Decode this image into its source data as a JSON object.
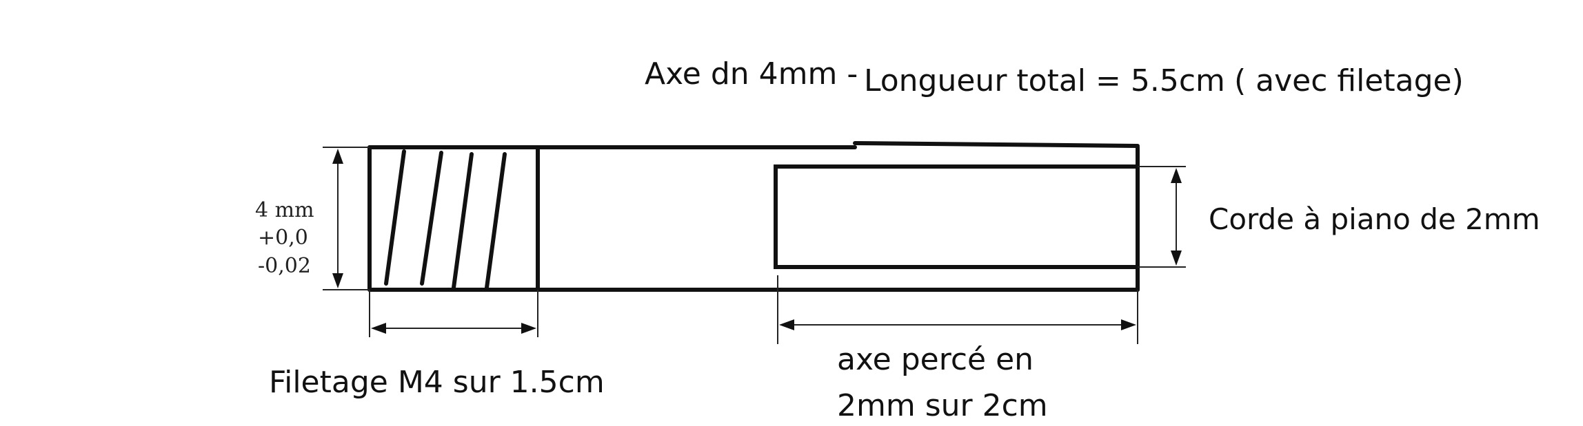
{
  "labels": {
    "axe_dn": "Axe dn 4mm -",
    "longueur_total": "Longueur total = 5.5cm",
    "avec_filetage": "( avec filetage)",
    "tol_4mm": "4 mm",
    "tol_plus": "+0,0",
    "tol_minus": "-0,02",
    "corde_piano": "Corde à piano de 2mm",
    "filetage": "Filetage M4 sur 1.5cm",
    "axe_perce_line1": "axe percé en",
    "axe_perce_line2": "2mm sur 2cm"
  },
  "colors": {
    "ink": "#111111",
    "background": "#ffffff"
  }
}
